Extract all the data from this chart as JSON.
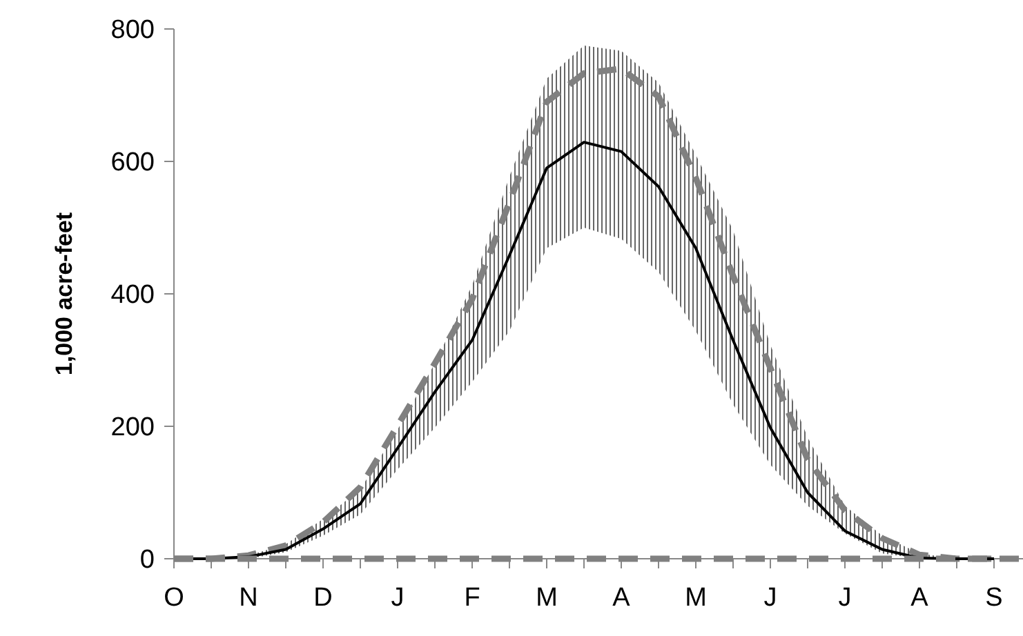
{
  "chart_data": {
    "type": "line",
    "ylabel": "1,000 acre-feet",
    "categories": [
      "O",
      null,
      "N",
      null,
      "D",
      null,
      "J",
      null,
      "F",
      null,
      "M",
      null,
      "A",
      null,
      "M",
      null,
      "J",
      null,
      "J",
      null,
      "A",
      null,
      "S"
    ],
    "series": [
      {
        "color": "#000000",
        "line_style": "solid",
        "values": [
          0,
          0,
          3,
          14,
          45,
          83,
          167,
          252,
          330,
          458,
          590,
          629,
          615,
          562,
          469,
          330,
          198,
          100,
          42,
          14,
          1,
          0,
          0
        ],
        "lower": [
          0,
          0,
          0,
          10,
          35,
          67,
          135,
          198,
          267,
          344,
          469,
          500,
          483,
          433,
          344,
          233,
          142,
          80,
          38,
          8,
          0,
          0,
          0
        ],
        "upper": [
          0,
          0,
          5,
          22,
          60,
          105,
          195,
          295,
          413,
          577,
          725,
          775,
          767,
          719,
          610,
          496,
          323,
          183,
          80,
          35,
          8,
          0,
          0
        ]
      },
      {
        "color": "#808080",
        "line_style": "dashed",
        "values": [
          0,
          0,
          5,
          20,
          55,
          108,
          201,
          295,
          392,
          538,
          690,
          733,
          740,
          698,
          575,
          427,
          288,
          150,
          73,
          31,
          6,
          0,
          0
        ]
      }
    ],
    "ref_lines": [
      {
        "axis": "y",
        "value": 0,
        "color": "#808080",
        "line_style": "dashed"
      }
    ],
    "ylim": [
      0,
      800
    ],
    "yticks": [
      0,
      200,
      400,
      600,
      800
    ],
    "grid": false,
    "marker": "none"
  }
}
